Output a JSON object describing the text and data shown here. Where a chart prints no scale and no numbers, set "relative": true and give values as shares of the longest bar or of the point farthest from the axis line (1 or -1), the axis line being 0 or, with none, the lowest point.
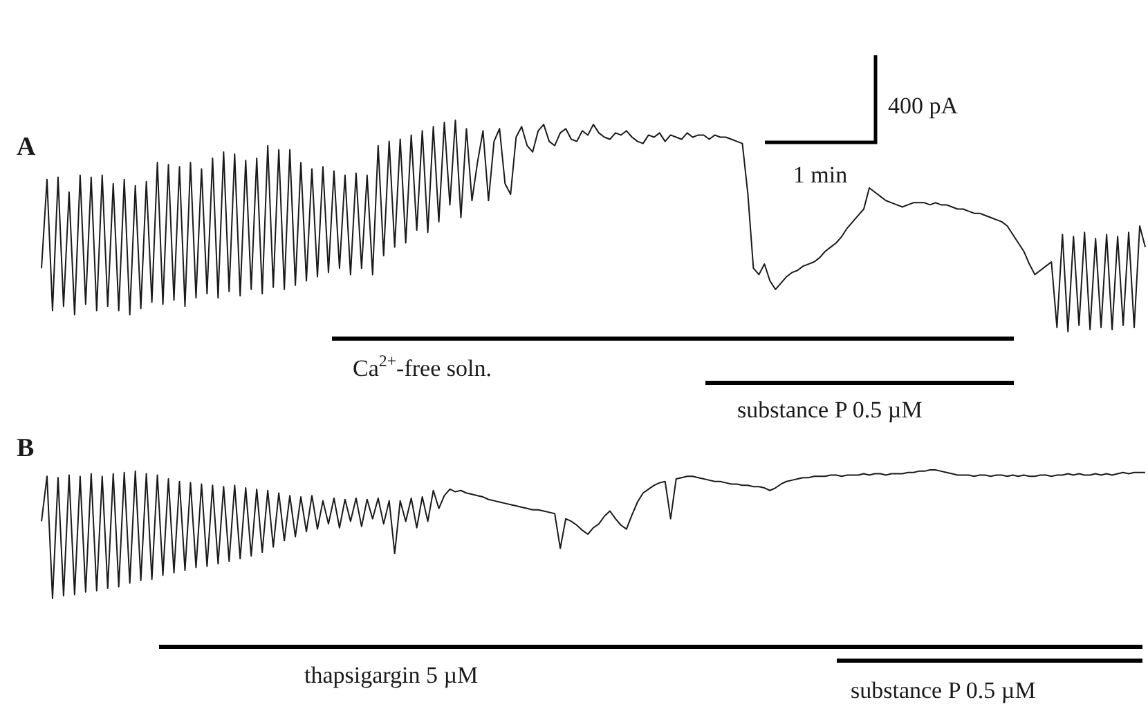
{
  "chart_data": [
    {
      "type": "line",
      "title": "A",
      "relative": true,
      "annotations": [
        "400 pA",
        "1 min",
        "Ca$^{2+}$-free soln.",
        "substance P 0.5 µM"
      ],
      "categories": [
        null,
        null,
        null,
        null,
        null,
        null,
        null,
        null,
        null,
        null,
        null,
        null,
        null,
        null,
        null,
        null,
        null,
        null,
        null,
        null,
        null,
        null,
        null,
        null,
        null,
        null,
        null,
        null,
        null,
        null,
        null,
        null,
        null,
        null,
        null,
        null,
        null,
        null,
        null,
        null,
        null,
        null,
        null,
        null,
        null,
        null,
        null,
        null,
        null,
        null,
        null,
        null,
        null,
        null,
        null,
        null,
        null,
        null,
        null,
        null,
        null,
        null,
        null,
        null,
        null,
        null,
        null,
        null,
        null,
        null,
        null,
        null,
        null,
        null,
        null,
        null,
        null,
        null,
        null,
        null,
        null,
        null,
        null,
        null,
        null,
        null,
        null,
        null,
        null,
        null,
        null,
        null,
        null,
        null,
        null,
        null,
        null,
        null,
        null,
        null,
        null,
        null,
        null,
        null,
        null,
        null,
        null,
        null,
        null,
        null,
        null,
        null,
        null,
        null,
        null,
        null,
        null,
        null,
        null,
        null,
        null,
        null,
        null,
        null,
        null,
        null,
        null,
        null,
        null,
        null,
        null,
        null,
        null,
        null,
        null,
        null,
        null,
        null,
        null,
        null,
        null,
        null,
        null,
        null,
        null,
        null,
        null,
        null,
        null,
        null,
        null,
        null,
        null,
        null,
        null,
        null,
        null,
        null,
        null,
        null,
        null,
        null,
        null,
        null,
        null,
        null,
        null,
        null,
        null,
        null,
        null,
        null,
        null,
        null,
        null,
        null,
        null,
        null,
        null,
        null,
        null,
        null,
        null,
        null,
        null,
        null,
        null,
        null,
        null,
        null,
        null,
        null,
        null,
        null,
        null,
        null,
        null,
        null,
        null,
        null,
        null
      ],
      "series": [
        {
          "color": "#1a1a1a",
          "values": [
            0.3,
            0.72,
            0.1,
            0.73,
            0.12,
            0.66,
            0.08,
            0.74,
            0.13,
            0.73,
            0.1,
            0.74,
            0.12,
            0.7,
            0.1,
            0.72,
            0.08,
            0.69,
            0.11,
            0.71,
            0.14,
            0.8,
            0.13,
            0.79,
            0.15,
            0.78,
            0.12,
            0.8,
            0.16,
            0.77,
            0.18,
            0.82,
            0.16,
            0.85,
            0.19,
            0.84,
            0.17,
            0.81,
            0.2,
            0.82,
            0.18,
            0.88,
            0.21,
            0.86,
            0.2,
            0.86,
            0.22,
            0.8,
            0.24,
            0.77,
            0.26,
            0.78,
            0.28,
            0.76,
            0.3,
            0.74,
            0.27,
            0.75,
            0.3,
            0.74,
            0.27,
            0.88,
            0.36,
            0.9,
            0.4,
            0.91,
            0.42,
            0.93,
            0.48,
            0.95,
            0.47,
            0.97,
            0.52,
            0.99,
            0.6,
            1.0,
            0.54,
            0.96,
            0.62,
            0.8,
            0.95,
            0.62,
            0.9,
            0.96,
            0.7,
            0.65,
            0.92,
            0.97,
            0.88,
            0.85,
            0.95,
            0.98,
            0.9,
            0.88,
            0.94,
            0.96,
            0.91,
            0.9,
            0.95,
            0.93,
            0.98,
            0.94,
            0.92,
            0.91,
            0.94,
            0.93,
            0.95,
            0.92,
            0.9,
            0.89,
            0.93,
            0.92,
            0.94,
            0.9,
            0.93,
            0.92,
            0.91,
            0.94,
            0.92,
            0.93,
            0.93,
            0.91,
            0.93,
            0.92,
            0.92,
            0.91,
            0.9,
            0.89,
            0.65,
            0.3,
            0.27,
            0.32,
            0.24,
            0.2,
            0.23,
            0.26,
            0.28,
            0.29,
            0.31,
            0.32,
            0.33,
            0.35,
            0.38,
            0.4,
            0.42,
            0.45,
            0.49,
            0.52,
            0.55,
            0.58,
            0.68,
            0.66,
            0.64,
            0.62,
            0.61,
            0.6,
            0.59,
            0.6,
            0.61,
            0.61,
            0.61,
            0.6,
            0.61,
            0.6,
            0.6,
            0.59,
            0.58,
            0.58,
            0.57,
            0.56,
            0.56,
            0.55,
            0.54,
            0.53,
            0.52,
            0.5,
            0.46,
            0.42,
            0.38,
            0.32,
            0.27,
            0.29,
            0.31,
            0.33,
            0.02,
            0.46,
            0.0,
            0.45,
            0.03,
            0.47,
            0.01,
            0.44,
            0.02,
            0.46,
            0.01,
            0.45,
            0.03,
            0.47,
            0.02,
            0.5,
            0.4
          ]
        }
      ]
    },
    {
      "type": "line",
      "title": "B",
      "relative": true,
      "annotations": [
        "thapsigargin 5 µM",
        "substance P 0.5 µM"
      ],
      "categories": [
        null,
        null,
        null,
        null,
        null,
        null,
        null,
        null,
        null,
        null,
        null,
        null,
        null,
        null,
        null,
        null,
        null,
        null,
        null,
        null,
        null,
        null,
        null,
        null,
        null,
        null,
        null,
        null,
        null,
        null,
        null,
        null,
        null,
        null,
        null,
        null,
        null,
        null,
        null,
        null,
        null,
        null,
        null,
        null,
        null,
        null,
        null,
        null,
        null,
        null,
        null,
        null,
        null,
        null,
        null,
        null,
        null,
        null,
        null,
        null,
        null,
        null,
        null,
        null,
        null,
        null,
        null,
        null,
        null,
        null,
        null,
        null,
        null,
        null,
        null,
        null,
        null,
        null,
        null,
        null,
        null,
        null,
        null,
        null,
        null,
        null,
        null,
        null,
        null,
        null,
        null,
        null,
        null,
        null,
        null,
        null,
        null,
        null,
        null,
        null,
        null,
        null,
        null,
        null,
        null,
        null,
        null,
        null,
        null,
        null,
        null,
        null,
        null,
        null,
        null,
        null,
        null,
        null,
        null,
        null,
        null,
        null,
        null,
        null,
        null,
        null,
        null,
        null,
        null,
        null,
        null,
        null,
        null,
        null,
        null,
        null,
        null,
        null,
        null,
        null,
        null,
        null,
        null,
        null,
        null,
        null,
        null,
        null,
        null,
        null,
        null,
        null,
        null,
        null,
        null,
        null,
        null,
        null,
        null,
        null,
        null,
        null,
        null,
        null,
        null,
        null,
        null,
        null,
        null,
        null,
        null,
        null,
        null,
        null,
        null,
        null,
        null,
        null,
        null,
        null,
        null,
        null,
        null,
        null,
        null,
        null,
        null,
        null,
        null,
        null,
        null,
        null,
        null,
        null,
        null,
        null,
        null,
        null,
        null,
        null,
        null
      ],
      "series": [
        {
          "color": "#1a1a1a",
          "values": [
            0.6,
            0.95,
            0.0,
            0.94,
            0.02,
            0.96,
            0.03,
            0.95,
            0.05,
            0.97,
            0.06,
            0.95,
            0.08,
            0.97,
            0.09,
            0.98,
            0.12,
            0.99,
            0.14,
            0.97,
            0.15,
            0.96,
            0.18,
            0.93,
            0.2,
            0.91,
            0.22,
            0.9,
            0.24,
            0.89,
            0.25,
            0.88,
            0.27,
            0.87,
            0.29,
            0.88,
            0.31,
            0.86,
            0.33,
            0.85,
            0.36,
            0.84,
            0.4,
            0.82,
            0.45,
            0.8,
            0.48,
            0.79,
            0.52,
            0.8,
            0.54,
            0.76,
            0.58,
            0.78,
            0.55,
            0.77,
            0.6,
            0.78,
            0.56,
            0.77,
            0.62,
            0.78,
            0.58,
            0.76,
            0.35,
            0.76,
            0.6,
            0.78,
            0.55,
            0.79,
            0.6,
            0.84,
            0.7,
            0.8,
            0.85,
            0.83,
            0.84,
            0.82,
            0.81,
            0.8,
            0.79,
            0.77,
            0.76,
            0.75,
            0.74,
            0.73,
            0.72,
            0.71,
            0.7,
            0.69,
            0.69,
            0.68,
            0.67,
            0.66,
            0.39,
            0.62,
            0.6,
            0.57,
            0.53,
            0.5,
            0.55,
            0.58,
            0.64,
            0.68,
            0.62,
            0.57,
            0.54,
            0.65,
            0.75,
            0.82,
            0.85,
            0.88,
            0.9,
            0.91,
            0.62,
            0.93,
            0.94,
            0.95,
            0.95,
            0.94,
            0.93,
            0.92,
            0.91,
            0.91,
            0.9,
            0.89,
            0.89,
            0.88,
            0.88,
            0.87,
            0.87,
            0.86,
            0.84,
            0.86,
            0.89,
            0.91,
            0.92,
            0.93,
            0.94,
            0.94,
            0.95,
            0.95,
            0.95,
            0.96,
            0.96,
            0.95,
            0.96,
            0.96,
            0.96,
            0.97,
            0.96,
            0.97,
            0.97,
            0.96,
            0.97,
            0.97,
            0.97,
            0.98,
            0.98,
            0.99,
            0.99,
            1.0,
            1.0,
            0.99,
            0.98,
            0.97,
            0.96,
            0.96,
            0.96,
            0.95,
            0.96,
            0.96,
            0.95,
            0.96,
            0.96,
            0.95,
            0.96,
            0.95,
            0.96,
            0.95,
            0.95,
            0.96,
            0.96,
            0.95,
            0.96,
            0.96,
            0.97,
            0.96,
            0.97,
            0.96,
            0.96,
            0.97,
            0.96,
            0.97,
            0.96,
            0.97,
            0.98,
            0.97,
            0.98,
            0.98,
            0.98
          ]
        }
      ]
    }
  ]
}
